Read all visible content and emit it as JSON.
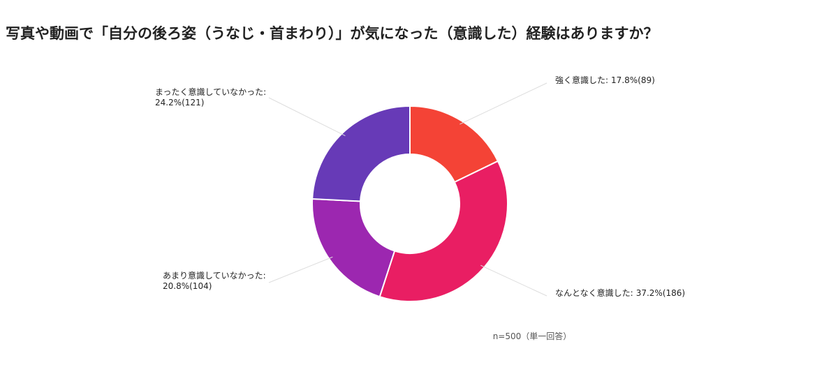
{
  "chart_data": {
    "type": "donut",
    "title": "写真や動画で「自分の後ろ姿（うなじ・首まわり）」が気になった（意識した）経験はありますか？",
    "categories": [
      "強く意識した:",
      "なんとなく意識した:",
      "あまり意識していなかった:",
      "まったく意識していなかった:"
    ],
    "values": [
      17.8,
      37.2,
      20.8,
      24.2
    ],
    "value_labels": [
      "17.8%(89)",
      "37.2%(186)",
      "20.8%(104)",
      "24.2%(121)"
    ],
    "colors": [
      "#f44336",
      "#e91e63",
      "#9c27b0",
      "#673ab7"
    ],
    "note": "n=500（単一回答）"
  }
}
